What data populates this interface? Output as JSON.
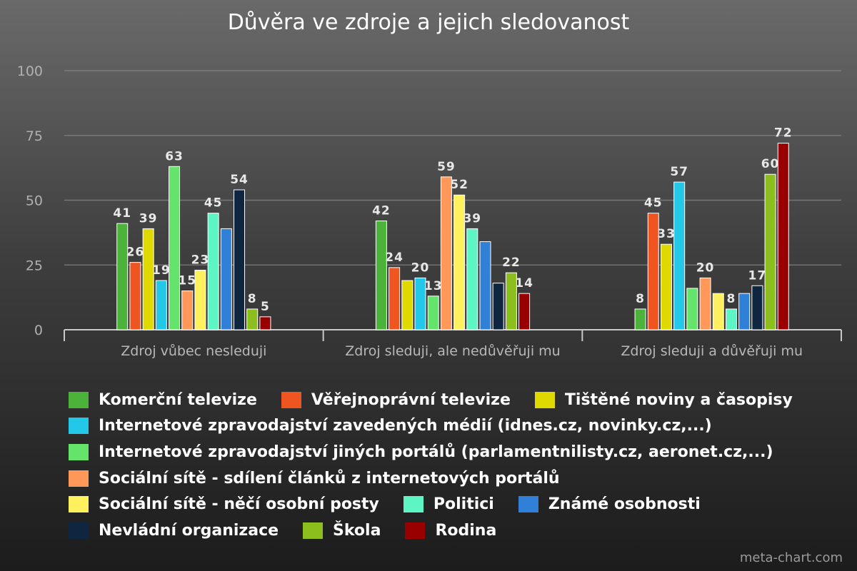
{
  "chart_data": {
    "type": "bar",
    "title": "Důvěra ve zdroje a jejich sledovanost",
    "xlabel": "",
    "ylabel": "",
    "ylim": [
      0,
      100
    ],
    "yticks": [
      "0",
      "25",
      "50",
      "75",
      "100"
    ],
    "grid": true,
    "legend_position": "bottom",
    "categories": [
      "Zdroj vůbec nesleduji",
      "Zdroj sleduji, ale nedůvěřuji mu",
      "Zdroj sleduji a důvěřuji mu"
    ],
    "series": [
      {
        "name": "Komerční televize",
        "color": "#4bb33a",
        "values": [
          41,
          42,
          8
        ]
      },
      {
        "name": "Věřejnoprávní televize",
        "color": "#ef5521",
        "values": [
          26,
          24,
          45
        ]
      },
      {
        "name": "Tištěné noviny a časopisy",
        "color": "#dfd900",
        "values": [
          39,
          19,
          33
        ]
      },
      {
        "name": "Internetové zpravodajství zavedených médií (idnes.cz, novinky.cz,...)",
        "color": "#23c7e8",
        "values": [
          19,
          20,
          57
        ]
      },
      {
        "name": "Internetové zpravodajství jiných portálů (parlamentnilisty.cz, aeronet.cz,...)",
        "color": "#65e46c",
        "values": [
          63,
          13,
          16
        ]
      },
      {
        "name": "Sociální sítě - sdílení článků z internetových portálů",
        "color": "#ff9858",
        "values": [
          15,
          59,
          20
        ]
      },
      {
        "name": "Sociální sítě - něčí osobní posty",
        "color": "#fff05d",
        "values": [
          23,
          52,
          14
        ]
      },
      {
        "name": "Politici",
        "color": "#5ef5c4",
        "values": [
          45,
          39,
          8
        ]
      },
      {
        "name": "Známé osobnosti",
        "color": "#2f80d6",
        "values": [
          39,
          34,
          14
        ]
      },
      {
        "name": "Nevládní organizace",
        "color": "#0e2640",
        "values": [
          54,
          18,
          17
        ]
      },
      {
        "name": "Škola",
        "color": "#8cbf1e",
        "values": [
          8,
          22,
          60
        ]
      },
      {
        "name": "Rodina",
        "color": "#980000",
        "values": [
          5,
          14,
          72
        ]
      }
    ],
    "data_labels": [
      [
        "41",
        "26",
        "39",
        "19",
        "63",
        "15",
        "23",
        "45",
        "",
        "54",
        "8",
        "5"
      ],
      [
        "42",
        "24",
        "",
        "20",
        "13",
        "59",
        "52",
        "39",
        "",
        "",
        "22",
        "14"
      ],
      [
        "8",
        "45",
        "33",
        "57",
        "",
        "20",
        "",
        "8",
        "",
        "17",
        "60",
        "72"
      ]
    ]
  },
  "legend_rows": [
    [
      0,
      1,
      2
    ],
    [
      3
    ],
    [
      4
    ],
    [
      5
    ],
    [
      6,
      7,
      8
    ],
    [
      9,
      10,
      11
    ]
  ],
  "watermark": "meta-chart.com"
}
